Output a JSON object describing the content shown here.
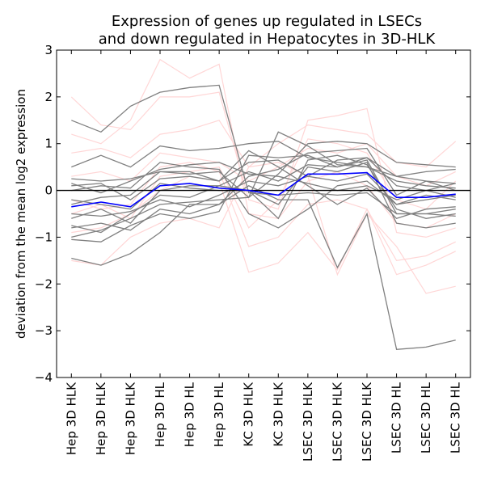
{
  "chart_data": {
    "type": "line",
    "title_line1": "Expression of genes up regulated in LSECs",
    "title_line2": "and down regulated in Hepatocytes in 3D-HLK",
    "xlabel": "",
    "ylabel": "deviation from the mean log2 expression",
    "ylim": [
      -4,
      3
    ],
    "xlim": [
      0,
      14
    ],
    "yticks": [
      -4,
      -3,
      -2,
      -1,
      0,
      1,
      2,
      3
    ],
    "yticks_labels": [
      "−4",
      "−3",
      "−2",
      "−1",
      "0",
      "1",
      "2",
      "3"
    ],
    "categories": [
      "Hep 3D HLK",
      "Hep 3D HLK",
      "Hep 3D HLK",
      "Hep 3D HL",
      "Hep 3D HL",
      "Hep 3D HL",
      "KC 3D HLK",
      "KC 3D HLK",
      "LSEC 3D HLK",
      "LSEC 3D HLK",
      "LSEC 3D HLK",
      "LSEC 3D HL",
      "LSEC 3D HL",
      "LSEC 3D HL"
    ],
    "zero_line": 0,
    "colors": {
      "background_lines": "#ffd6d6",
      "gene_lines": "#808080",
      "mean_line": "#0000ff",
      "zero_line": "#000000"
    },
    "mean_series": {
      "values": [
        -0.35,
        -0.25,
        -0.35,
        0.1,
        0.15,
        0.05,
        0.0,
        -0.1,
        0.35,
        0.35,
        0.38,
        -0.15,
        -0.15,
        -0.08
      ]
    },
    "gene_series": [
      {
        "values": [
          1.5,
          1.25,
          1.8,
          2.1,
          2.2,
          2.25,
          -0.05,
          -0.1,
          -0.05,
          -0.1,
          -0.05,
          -0.5,
          -0.5,
          -0.55
        ]
      },
      {
        "values": [
          -1.45,
          -1.6,
          -1.35,
          -0.9,
          -0.3,
          -0.3,
          0.1,
          -0.2,
          -0.2,
          -1.65,
          -0.5,
          -3.4,
          -3.35,
          -3.2
        ]
      },
      {
        "values": [
          0.5,
          0.75,
          0.5,
          0.95,
          0.85,
          0.9,
          1.0,
          1.05,
          0.7,
          0.6,
          0.5,
          0.2,
          0.1,
          0.05
        ]
      },
      {
        "values": [
          0.25,
          0.2,
          0.25,
          0.4,
          0.35,
          0.4,
          -0.15,
          1.25,
          0.95,
          0.55,
          0.5,
          0.3,
          0.2,
          0.15
        ]
      },
      {
        "values": [
          -1.0,
          -0.85,
          -0.6,
          -0.3,
          -0.25,
          -0.2,
          -0.15,
          0.35,
          1.0,
          1.05,
          1.0,
          0.6,
          0.55,
          0.5
        ]
      },
      {
        "values": [
          -0.75,
          -0.9,
          -0.5,
          -0.1,
          -0.15,
          0.1,
          0.0,
          -0.3,
          0.5,
          0.4,
          0.6,
          -0.7,
          -0.8,
          -0.7
        ]
      },
      {
        "values": [
          0.1,
          0.15,
          -0.2,
          0.25,
          0.3,
          0.2,
          0.6,
          0.65,
          0.3,
          0.2,
          0.35,
          -0.3,
          -0.1,
          -0.2
        ]
      },
      {
        "values": [
          -0.6,
          -0.4,
          -0.7,
          0.0,
          0.1,
          0.1,
          0.4,
          0.2,
          0.55,
          0.5,
          0.65,
          -0.5,
          -0.5,
          -0.4
        ]
      },
      {
        "values": [
          -0.3,
          -0.15,
          -0.1,
          0.4,
          0.4,
          0.2,
          0.85,
          0.5,
          0.1,
          -0.3,
          0.05,
          -0.6,
          -0.4,
          -0.35
        ]
      },
      {
        "values": [
          -0.5,
          -0.55,
          -0.45,
          -0.2,
          -0.35,
          -0.1,
          0.2,
          0.1,
          0.3,
          0.65,
          0.7,
          0.1,
          0.0,
          0.15
        ]
      },
      {
        "values": [
          0.0,
          0.1,
          0.05,
          0.6,
          0.5,
          0.45,
          -0.5,
          -0.8,
          -0.4,
          0.1,
          0.2,
          -0.3,
          -0.2,
          -0.1
        ]
      },
      {
        "values": [
          -0.8,
          -0.7,
          -0.85,
          -0.4,
          -0.5,
          -0.3,
          0.3,
          0.45,
          0.8,
          0.85,
          0.9,
          -0.1,
          0.2,
          0.0
        ]
      },
      {
        "values": [
          -0.2,
          -0.3,
          -0.4,
          0.15,
          0.05,
          0.0,
          0.0,
          -0.6,
          0.65,
          0.75,
          0.55,
          -0.4,
          -0.6,
          -0.5
        ]
      },
      {
        "values": [
          -1.05,
          -1.1,
          -0.75,
          -0.5,
          -0.6,
          -0.45,
          0.75,
          0.7,
          0.75,
          0.5,
          0.7,
          0.3,
          0.4,
          0.45
        ]
      },
      {
        "values": [
          0.15,
          -0.05,
          0.2,
          0.45,
          0.55,
          0.6,
          0.35,
          0.3,
          0.15,
          0.0,
          0.1,
          -0.2,
          0.0,
          -0.15
        ]
      }
    ],
    "background_series": [
      {
        "values": [
          1.2,
          1.0,
          1.5,
          2.8,
          2.4,
          2.7,
          -0.5,
          -0.6,
          0.2,
          0.4,
          0.1,
          -0.7,
          -0.8,
          -0.5
        ]
      },
      {
        "values": [
          2.0,
          1.4,
          1.3,
          2.0,
          2.0,
          2.1,
          -0.2,
          -0.4,
          1.5,
          1.6,
          1.75,
          -0.9,
          -1.0,
          -0.8
        ]
      },
      {
        "values": [
          -1.5,
          -1.6,
          -1.0,
          -0.7,
          -0.6,
          -0.8,
          0.5,
          0.6,
          0.3,
          -1.8,
          -0.5,
          -1.2,
          -2.2,
          -2.05
        ]
      },
      {
        "values": [
          0.8,
          0.9,
          0.7,
          1.2,
          1.3,
          1.5,
          0.5,
          1.0,
          1.4,
          1.3,
          1.2,
          0.6,
          0.5,
          1.05
        ]
      },
      {
        "values": [
          -0.9,
          -0.8,
          -0.5,
          0.0,
          0.3,
          0.2,
          -1.75,
          -1.55,
          -0.9,
          -1.7,
          -0.4,
          -1.8,
          -1.6,
          -1.3
        ]
      },
      {
        "values": [
          -0.5,
          -0.3,
          -0.6,
          0.3,
          0.4,
          0.5,
          -0.8,
          -0.2,
          1.1,
          1.0,
          0.8,
          -0.2,
          -0.4,
          0.2
        ]
      },
      {
        "values": [
          0.3,
          0.4,
          0.2,
          0.8,
          0.7,
          0.6,
          0.2,
          0.5,
          0.9,
          0.8,
          1.0,
          0.3,
          0.1,
          0.4
        ]
      },
      {
        "values": [
          -0.2,
          -0.4,
          -0.3,
          0.5,
          0.6,
          0.4,
          -1.2,
          -1.0,
          -0.3,
          -0.2,
          -0.4,
          -1.5,
          -1.4,
          -1.1
        ]
      }
    ]
  }
}
